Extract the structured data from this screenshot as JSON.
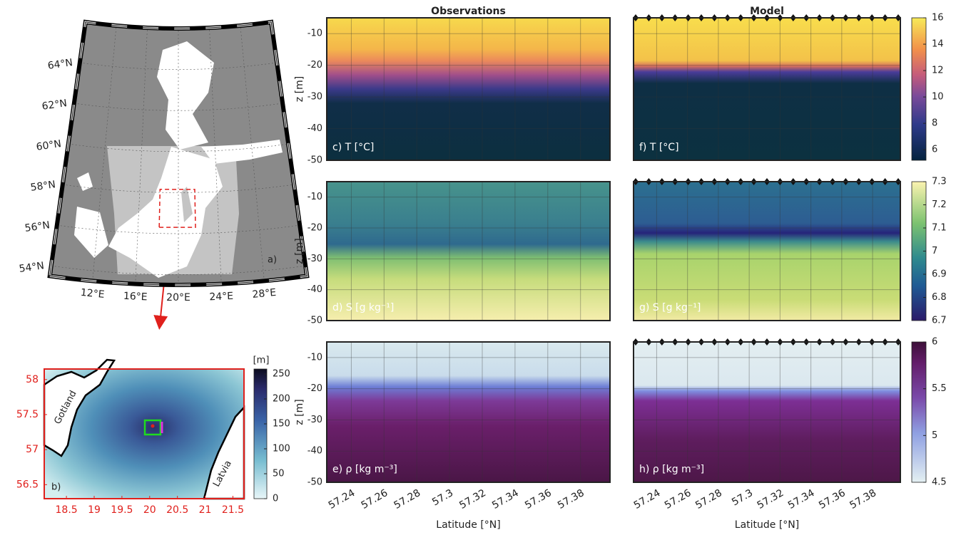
{
  "chart_data": [
    {
      "type": "map",
      "label": "a)",
      "xlim": [
        8,
        32
      ],
      "ylim": [
        53.5,
        66
      ],
      "xticks": [
        {
          "value": 12,
          "label": "12°E"
        },
        {
          "value": 16,
          "label": "16°E"
        },
        {
          "value": 20,
          "label": "20°E"
        },
        {
          "value": 24,
          "label": "24°E"
        },
        {
          "value": 28,
          "label": "28°E"
        }
      ],
      "yticks": [
        {
          "value": 54,
          "label": "54°N"
        },
        {
          "value": 56,
          "label": "56°N"
        },
        {
          "value": 58,
          "label": "58°N"
        },
        {
          "value": 60,
          "label": "60°N"
        },
        {
          "value": 62,
          "label": "62°N"
        },
        {
          "value": 64,
          "label": "64°N"
        }
      ]
    },
    {
      "type": "inset",
      "label": "b)",
      "xlim": [
        18.1,
        21.7
      ],
      "ylim": [
        56.3,
        58.15
      ],
      "xticks": [
        18.5,
        19,
        19.5,
        20,
        20.5,
        21,
        21.5
      ],
      "yticks": [
        56.5,
        57,
        57.5,
        58
      ],
      "annotations": [
        "Gotland",
        "Latvia"
      ],
      "colorbar": {
        "title": "[m]",
        "lim": [
          0,
          260
        ],
        "ticks": [
          0,
          50,
          100,
          150,
          200,
          250
        ]
      }
    },
    {
      "type": "heatmap",
      "title": "Observations",
      "label": "c) T [°C]",
      "ylabel": "z [m]",
      "xlim": [
        57.225,
        57.398
      ],
      "ylim": [
        -50,
        -5
      ],
      "xticks": [
        57.24,
        57.26,
        57.28,
        57.3,
        57.32,
        57.34,
        57.36,
        57.38
      ],
      "yticks": [
        -50,
        -40,
        -30,
        -20,
        -10
      ],
      "show_xtick_labels": false,
      "show_ytick_labels": true,
      "grid": true
    },
    {
      "type": "heatmap",
      "title": "Model",
      "label": "f) T [°C]",
      "xlim": [
        57.225,
        57.398
      ],
      "ylim": [
        -50,
        -5
      ],
      "xticks": [
        57.24,
        57.26,
        57.28,
        57.3,
        57.32,
        57.34,
        57.36,
        57.38
      ],
      "yticks": [
        -50,
        -40,
        -30,
        -20,
        -10
      ],
      "show_xtick_labels": false,
      "show_ytick_labels": false,
      "grid": true,
      "colorbar": {
        "lim": [
          5.2,
          16
        ],
        "ticks": [
          6,
          8,
          10,
          12,
          14,
          16
        ]
      }
    },
    {
      "type": "heatmap",
      "label": "d) S [g kg⁻¹]",
      "ylabel": "z [m]",
      "xlim": [
        57.225,
        57.398
      ],
      "ylim": [
        -50,
        -5
      ],
      "xticks": [
        57.24,
        57.26,
        57.28,
        57.3,
        57.32,
        57.34,
        57.36,
        57.38
      ],
      "yticks": [
        -50,
        -40,
        -30,
        -20,
        -10
      ],
      "show_xtick_labels": false,
      "show_ytick_labels": true,
      "grid": true
    },
    {
      "type": "heatmap",
      "label": "g) S [g kg⁻¹]",
      "xlim": [
        57.225,
        57.398
      ],
      "ylim": [
        -50,
        -5
      ],
      "xticks": [
        57.24,
        57.26,
        57.28,
        57.3,
        57.32,
        57.34,
        57.36,
        57.38
      ],
      "yticks": [
        -50,
        -40,
        -30,
        -20,
        -10
      ],
      "show_xtick_labels": false,
      "show_ytick_labels": false,
      "grid": true,
      "colorbar": {
        "lim": [
          6.7,
          7.3
        ],
        "ticks": [
          6.7,
          6.8,
          6.9,
          7,
          7.1,
          7.2,
          7.3
        ]
      }
    },
    {
      "type": "heatmap",
      "label": "e) ρ [kg m⁻³]",
      "ylabel": "z [m]",
      "xlabel": "Latitude [°N]",
      "xlim": [
        57.225,
        57.398
      ],
      "ylim": [
        -50,
        -5
      ],
      "xticks": [
        57.24,
        57.26,
        57.28,
        57.3,
        57.32,
        57.34,
        57.36,
        57.38
      ],
      "yticks": [
        -50,
        -40,
        -30,
        -20,
        -10
      ],
      "show_xtick_labels": true,
      "show_ytick_labels": true,
      "grid": true
    },
    {
      "type": "heatmap",
      "label": "h) ρ [kg m⁻³]",
      "xlabel": "Latitude [°N]",
      "xlim": [
        57.225,
        57.398
      ],
      "ylim": [
        -50,
        -5
      ],
      "xticks": [
        57.24,
        57.26,
        57.28,
        57.3,
        57.32,
        57.34,
        57.36,
        57.38
      ],
      "yticks": [
        -50,
        -40,
        -30,
        -20,
        -10
      ],
      "show_xtick_labels": true,
      "show_ytick_labels": false,
      "grid": true,
      "colorbar": {
        "lim": [
          4.5,
          6
        ],
        "ticks": [
          4.5,
          5,
          5.5,
          6
        ]
      }
    }
  ]
}
